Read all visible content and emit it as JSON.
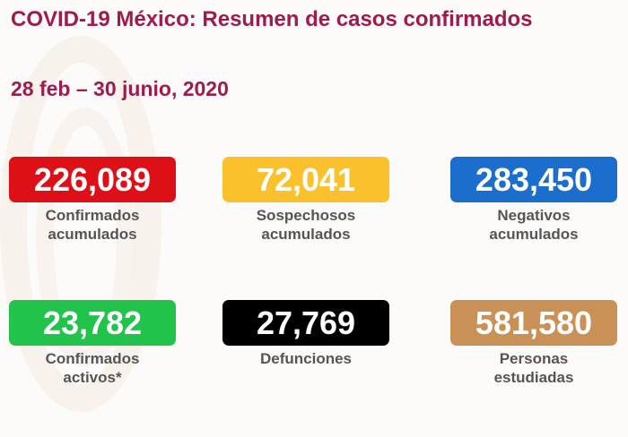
{
  "header": {
    "title": "COVID-19 México: Resumen de casos confirmados",
    "date_range": "28 feb – 30 junio, 2020"
  },
  "stats": [
    {
      "value": "226,089",
      "label1": "Confirmados",
      "label2": "acumulados",
      "color": "#de1017"
    },
    {
      "value": "72,041",
      "label1": "Sospechosos",
      "label2": "acumulados",
      "color": "#fbc12c"
    },
    {
      "value": "283,450",
      "label1": "Negativos",
      "label2": "acumulados",
      "color": "#1b6ecb"
    },
    {
      "value": "23,782",
      "label1": "Confirmados",
      "label2": "activos*",
      "color": "#21c34b"
    },
    {
      "value": "27,769",
      "label1": "Defunciones",
      "label2": "",
      "color": "#000000"
    },
    {
      "value": "581,580",
      "label1": "Personas",
      "label2": "estudiadas",
      "color": "#c99156"
    }
  ]
}
